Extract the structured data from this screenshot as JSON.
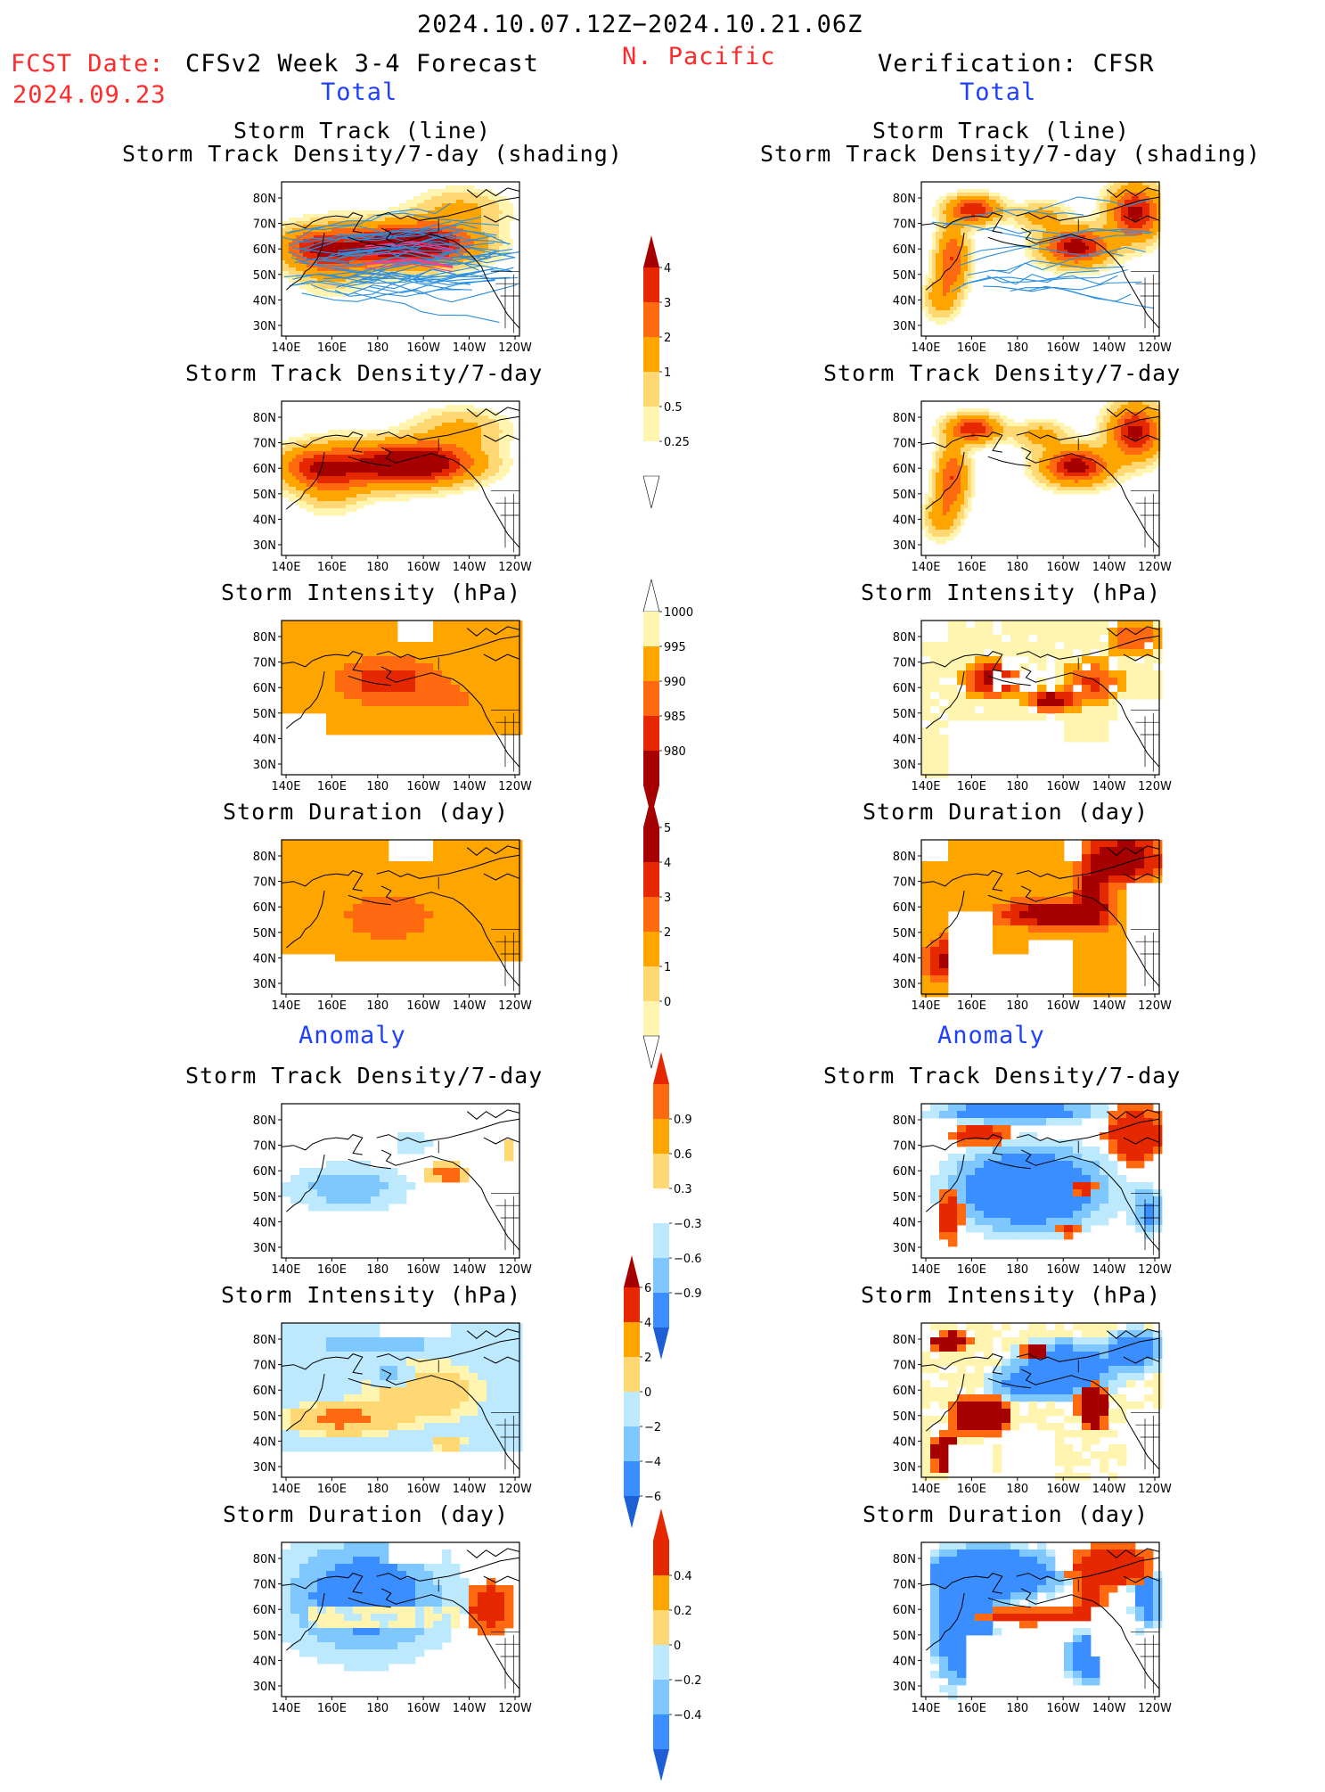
{
  "header": {
    "date_range": "2024.10.07.12Z−2024.10.21.06Z",
    "region": "N. Pacific",
    "fcst_label": "FCST Date:",
    "fcst_date": "2024.09.23",
    "forecast_title": "CFSv2 Week 3-4 Forecast",
    "verification_title": "Verification: CFSR",
    "section_total": "Total",
    "section_anomaly": "Anomaly"
  },
  "panel_titles": {
    "track_line": "Storm Track (line)",
    "track_shading": "Storm Track Density/7-day (shading)",
    "density": "Storm Track Density/7-day",
    "intensity": "Storm Intensity (hPa)",
    "duration": "Storm Duration (day)"
  },
  "axes": {
    "lon_ticks": [
      "140E",
      "160E",
      "180",
      "160W",
      "140W",
      "120W"
    ],
    "lat_ticks": [
      "80N",
      "70N",
      "60N",
      "50N",
      "40N",
      "30N"
    ]
  },
  "colorbars": {
    "density_total": [
      "0.25",
      "0.5",
      "1",
      "2",
      "3",
      "4"
    ],
    "intensity_total": [
      "1000",
      "995",
      "990",
      "985",
      "980"
    ],
    "duration_total": [
      "0",
      "1",
      "2",
      "3",
      "4",
      "5"
    ],
    "density_anom": [
      "−0.9",
      "−0.6",
      "−0.3",
      "0.3",
      "0.6",
      "0.9"
    ],
    "intensity_anom": [
      "−6",
      "−4",
      "−2",
      "0",
      "2",
      "4",
      "6"
    ],
    "duration_anom": [
      "−0.4",
      "−0.2",
      "0",
      "0.2",
      "0.4"
    ]
  },
  "colors": {
    "warm": [
      "#fff5b0",
      "#ffd873",
      "#ffa500",
      "#ff6a10",
      "#e62800",
      "#a60000"
    ],
    "cool": [
      "#bde9ff",
      "#7ec8ff",
      "#3a8eff",
      "#1f5fd6"
    ],
    "track_line": "#2a8fe0"
  }
}
